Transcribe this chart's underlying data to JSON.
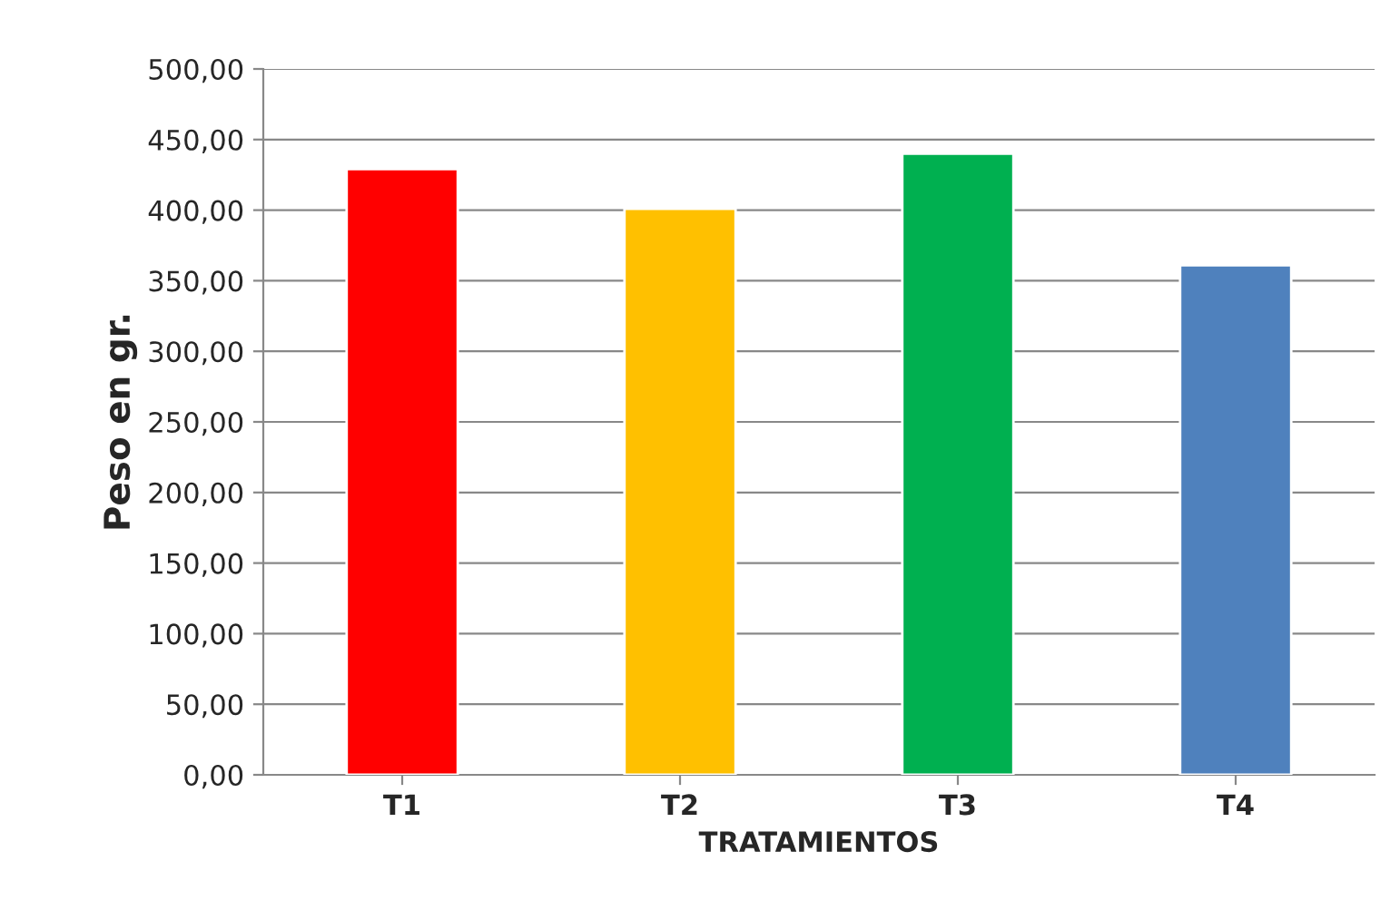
{
  "chart_data": {
    "type": "bar",
    "xlabel": "TRATAMIENTOS",
    "ylabel": "Peso en gr.",
    "categories": [
      "T1",
      "T2",
      "T3",
      "T4"
    ],
    "values": [
      429,
      401,
      440,
      361
    ],
    "colors": [
      "#ff0000",
      "#ffc000",
      "#00b050",
      "#4f81bd"
    ],
    "ylim": [
      0,
      500
    ],
    "yticks": [
      {
        "value": 0,
        "label": "0,00"
      },
      {
        "value": 50,
        "label": "50,00"
      },
      {
        "value": 100,
        "label": "100,00"
      },
      {
        "value": 150,
        "label": "150,00"
      },
      {
        "value": 200,
        "label": "200,00"
      },
      {
        "value": 250,
        "label": "250,00"
      },
      {
        "value": 300,
        "label": "300,00"
      },
      {
        "value": 350,
        "label": "350,00"
      },
      {
        "value": 400,
        "label": "400,00"
      },
      {
        "value": 450,
        "label": "450,00"
      },
      {
        "value": 500,
        "label": "500,00"
      }
    ],
    "grid": "y",
    "legend": false
  }
}
